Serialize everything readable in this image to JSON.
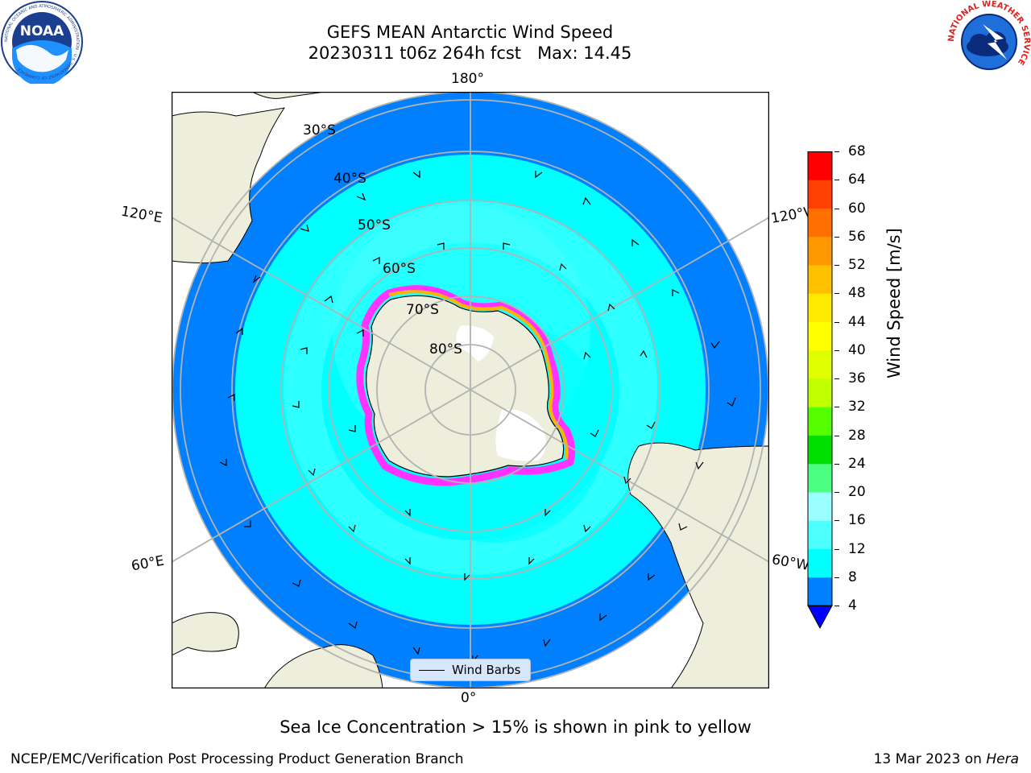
{
  "title": {
    "line1": "GEFS MEAN Antarctic Wind Speed",
    "line2": "20230311 t06z 264h fcst   Max: 14.45"
  },
  "logos": {
    "noaa_text": "NOAA",
    "noaa_ring": "NATIONAL OCEANIC AND ATMOSPHERIC ADMINISTRATION · U.S. DEPARTMENT OF COMMERCE",
    "nws_ring": "NATIONAL WEATHER SERVICE"
  },
  "map": {
    "projection": "south-polar-stereographic",
    "longitude_labels": {
      "top": "180°",
      "bottom": "0°",
      "left_upper": "120°E",
      "left_lower": "60°E",
      "right_upper": "120°W",
      "right_lower": "60°W"
    },
    "latitude_labels": [
      "30°S",
      "40°S",
      "50°S",
      "60°S",
      "70°S",
      "80°S"
    ],
    "colors": {
      "land": "#eeeedc",
      "ice_sheet": "#ffffff",
      "grid": "#b3b3b3",
      "sea_ice_edge": [
        "#ff33ff",
        "#ffb300",
        "#ffe97a"
      ]
    }
  },
  "colorbar": {
    "label": "Wind Speed [m/s]",
    "ticks": [
      "68",
      "64",
      "60",
      "56",
      "52",
      "48",
      "44",
      "40",
      "36",
      "32",
      "28",
      "24",
      "20",
      "16",
      "12",
      "8",
      "4"
    ],
    "colors_low_to_high": [
      "#0080ff",
      "#00ffff",
      "#4cffff",
      "#9affff",
      "#4cff80",
      "#00e000",
      "#55ff00",
      "#c0ff00",
      "#dfff00",
      "#ffff00",
      "#ffea00",
      "#ffc000",
      "#ff9800",
      "#ff7000",
      "#ff4000",
      "#ff0000"
    ],
    "extend_under_color": "#0000ff"
  },
  "legend": {
    "label": "Wind Barbs"
  },
  "caption": "Sea Ice Concentration > 15% is shown in pink to yellow",
  "footer": {
    "left": "NCEP/EMC/Verification Post Processing Product Generation Branch",
    "right_prefix": "13 Mar 2023 on ",
    "right_machine": "Hera"
  }
}
